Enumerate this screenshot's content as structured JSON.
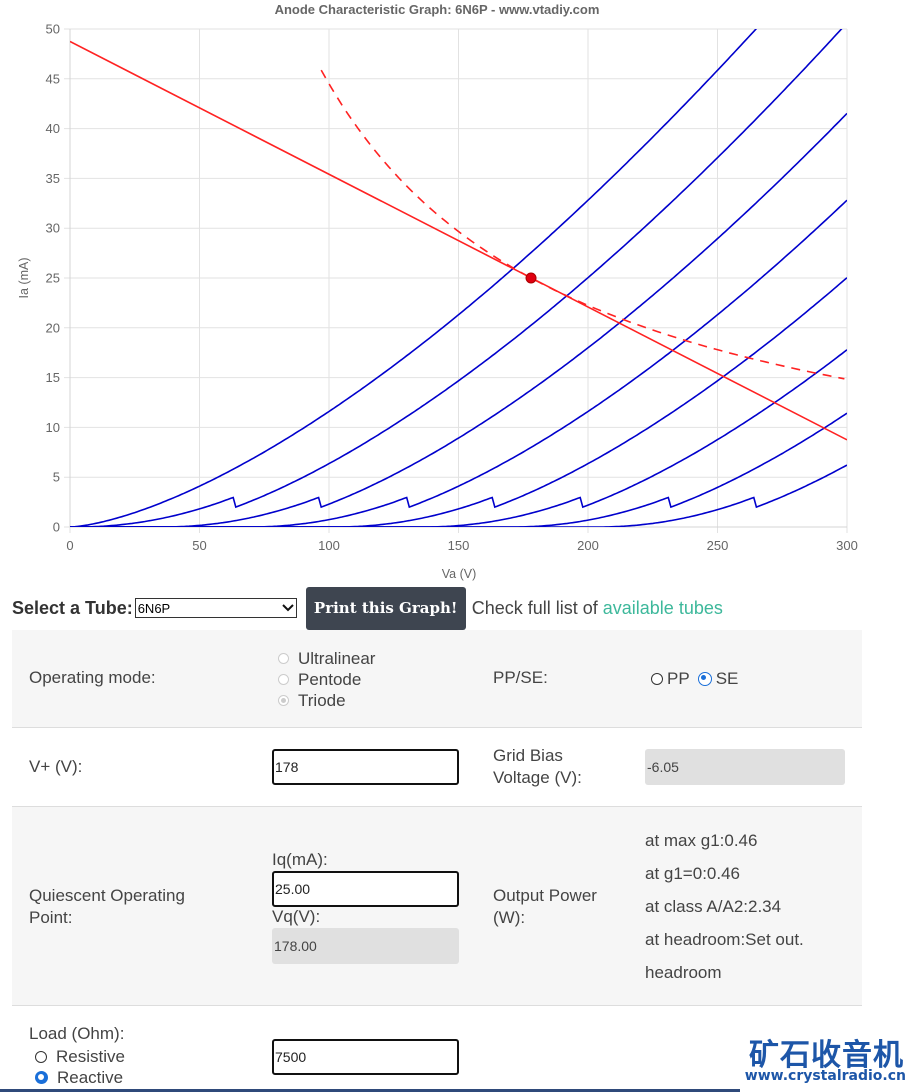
{
  "chart_data": {
    "type": "line",
    "title": "Anode Characteristic Graph: 6N6P - www.vtadiy.com",
    "xlabel": "Va (V)",
    "ylabel": "Ia (mA)",
    "xlim": [
      0,
      300
    ],
    "ylim": [
      0,
      50
    ],
    "x_ticks": [
      "0",
      "50",
      "100",
      "150",
      "200",
      "250",
      "300"
    ],
    "y_ticks": [
      "0",
      "5",
      "10",
      "15",
      "20",
      "25",
      "30",
      "35",
      "40",
      "45",
      "50"
    ],
    "grid": true,
    "curve_color": "#0000cc",
    "load_line_color": "#ff2222",
    "tube_curves": [
      {
        "offset": 0
      },
      {
        "offset": 33
      },
      {
        "offset": 66
      },
      {
        "offset": 100
      },
      {
        "offset": 133
      },
      {
        "offset": 167
      },
      {
        "offset": 201
      },
      {
        "offset": 234
      }
    ],
    "curve_k": 0.0116,
    "curve_exp": 1.5,
    "load_line": {
      "x": [
        0,
        300
      ],
      "y": [
        48.75,
        8.75
      ]
    },
    "max_dissipation_curve": {
      "watts": 4.45,
      "x_start": 97,
      "x_end": 300,
      "style": "dashed"
    },
    "operating_point": {
      "x": 178,
      "y": 25
    }
  },
  "selector": {
    "label": "Select a Tube:",
    "selected": "6N6P",
    "print_button": "Print this Graph!",
    "check_text": "Check full list of",
    "link_text": "available tubes"
  },
  "form": {
    "operating_mode": {
      "label": "Operating mode:",
      "options": [
        "Ultralinear",
        "Pentode",
        "Triode"
      ]
    },
    "ppse": {
      "label": "PP/SE:",
      "pp": "PP",
      "se": "SE"
    },
    "vplus": {
      "label": "V+ (V):",
      "value": "178"
    },
    "grid_bias": {
      "label_1": "Grid Bias",
      "label_2": "Voltage (V):",
      "value": "-6.05"
    },
    "quiescent": {
      "label_1": "Quiescent Operating",
      "label_2": "Point:",
      "iq_label": "Iq(mA):",
      "iq_value": "25.00",
      "vq_label": "Vq(V):",
      "vq_value": "178.00"
    },
    "output_power": {
      "label_1": "Output Power",
      "label_2": "(W):",
      "lines": [
        "at max g1:0.46",
        "at g1=0:0.46",
        "at class A/A2:2.34",
        "at headroom:Set out.",
        "headroom"
      ]
    },
    "load": {
      "label": "Load (Ohm):",
      "resistive": "Resistive",
      "reactive": "Reactive",
      "value": "7500"
    }
  },
  "watermark": {
    "cn": "矿石收音机",
    "url": "www.crystalradio.cn"
  }
}
